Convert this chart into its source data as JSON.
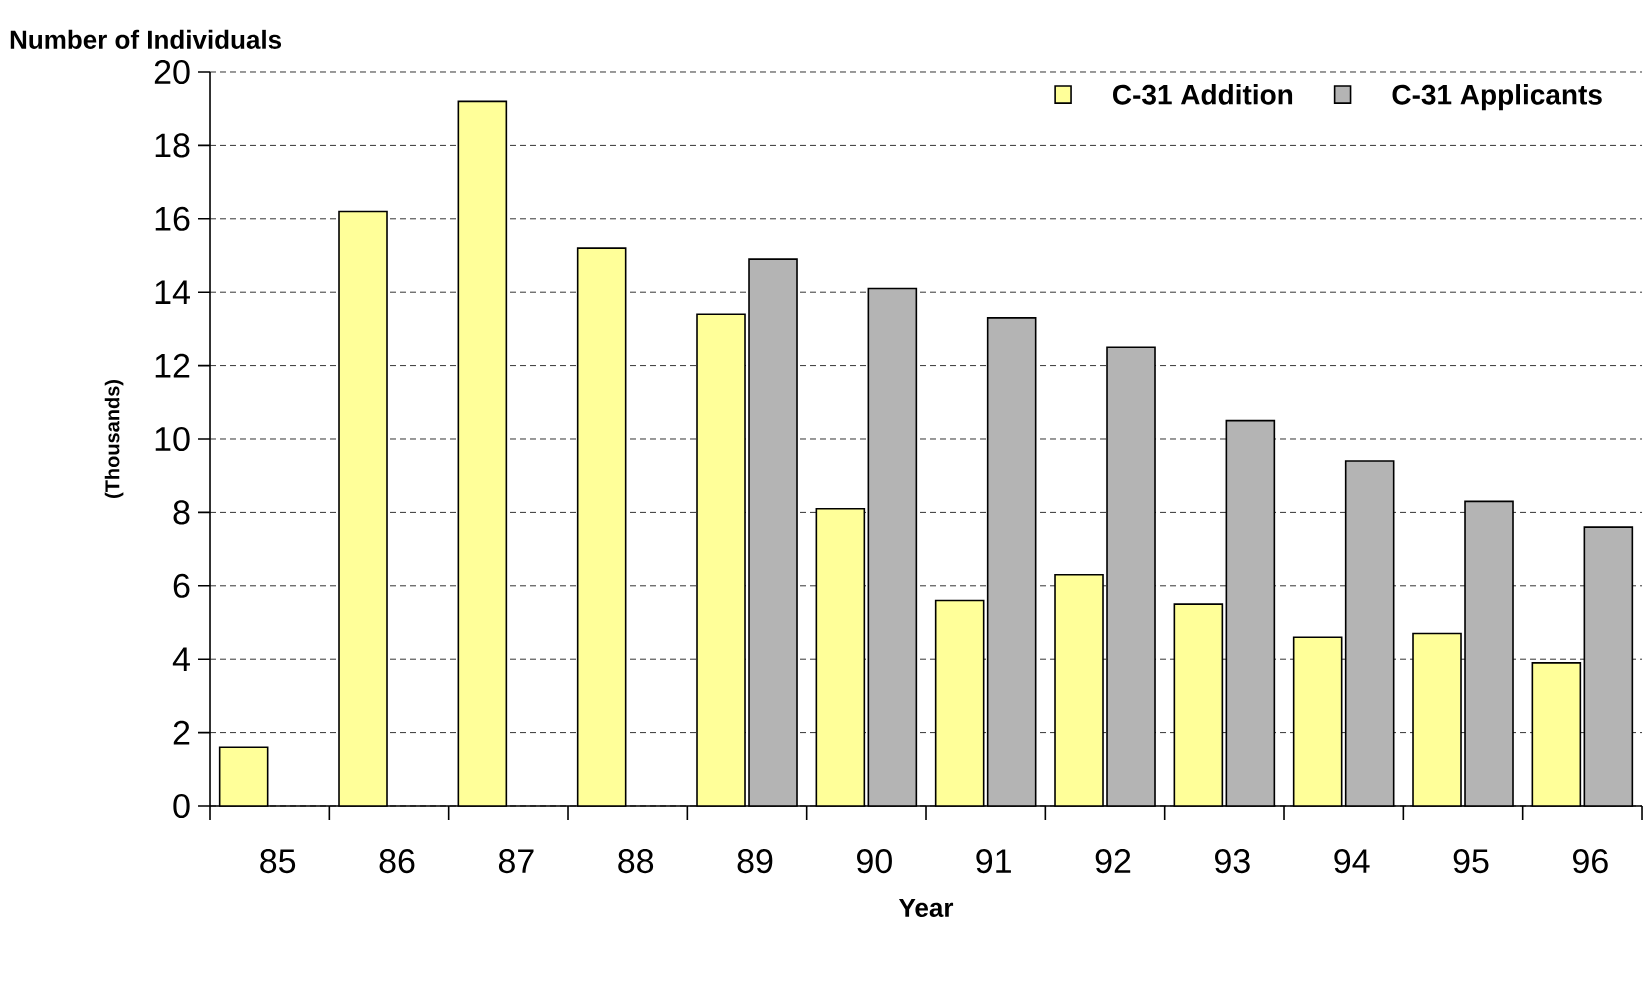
{
  "chart_data": {
    "type": "bar",
    "title": "Number of Individuals",
    "xlabel": "Year",
    "ylabel": "(Thousands)",
    "categories": [
      "85",
      "86",
      "87",
      "88",
      "89",
      "90",
      "91",
      "92",
      "93",
      "94",
      "95",
      "96"
    ],
    "series": [
      {
        "name": "C-31 Addition",
        "color": "#ffff99",
        "values": [
          1.6,
          16.2,
          19.2,
          15.2,
          13.4,
          8.1,
          5.6,
          6.3,
          5.5,
          4.6,
          4.7,
          3.9
        ]
      },
      {
        "name": "C-31 Applicants",
        "color": "#b4b4b4",
        "values": [
          null,
          null,
          null,
          null,
          14.9,
          14.1,
          13.3,
          12.5,
          10.5,
          9.4,
          8.3,
          7.6
        ]
      }
    ],
    "ylim": [
      0,
      20
    ],
    "yticks": [
      0,
      2,
      4,
      6,
      8,
      10,
      12,
      14,
      16,
      18,
      20
    ],
    "grid": "y",
    "legend": "top right"
  }
}
